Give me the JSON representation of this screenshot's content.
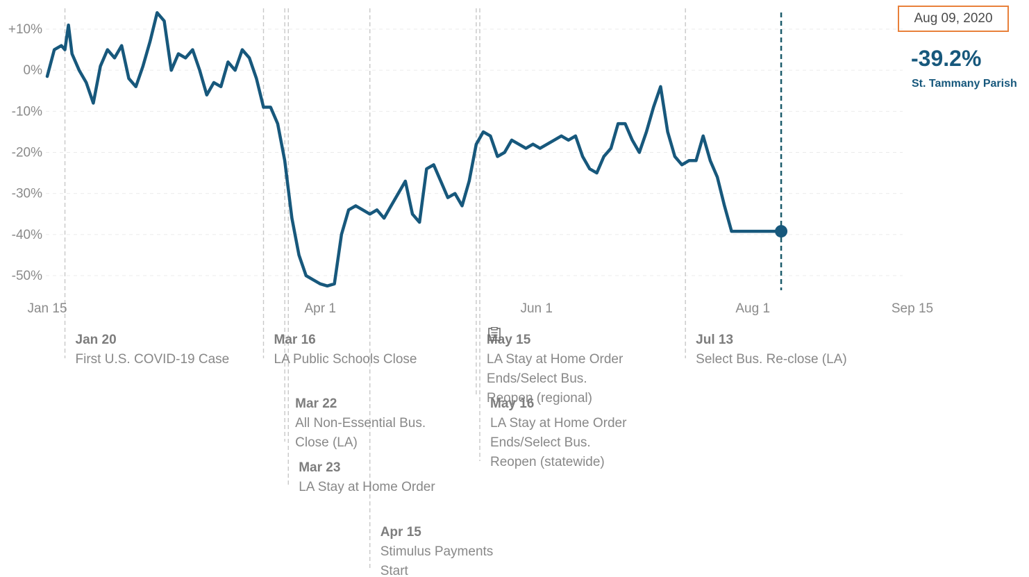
{
  "header": {
    "selected_date": "Aug 09, 2020",
    "selected_value": "-39.2%",
    "region": "St. Tammany Parish"
  },
  "colors": {
    "line": "#17587c",
    "highlight_box": "#e8803a",
    "text_muted": "#888888"
  },
  "chart_data": {
    "type": "line",
    "title": "",
    "xlabel": "",
    "ylabel": "",
    "ylim": [
      -55,
      15
    ],
    "xlim": [
      "2020-01-15",
      "2020-09-15"
    ],
    "yticks": [
      {
        "value": 10,
        "label": "+10%"
      },
      {
        "value": 0,
        "label": "0%"
      },
      {
        "value": -10,
        "label": "-10%"
      },
      {
        "value": -20,
        "label": "-20%"
      },
      {
        "value": -30,
        "label": "-30%"
      },
      {
        "value": -40,
        "label": "-40%"
      },
      {
        "value": -50,
        "label": "-50%"
      }
    ],
    "xticks": [
      {
        "date": "2020-01-15",
        "label": "Jan 15"
      },
      {
        "date": "2020-04-01",
        "label": "Apr 1"
      },
      {
        "date": "2020-06-01",
        "label": "Jun 1"
      },
      {
        "date": "2020-08-01",
        "label": "Aug 1"
      },
      {
        "date": "2020-09-15",
        "label": "Sep 15"
      }
    ],
    "grid": true,
    "highlight": {
      "date": "2020-08-09",
      "value": -39.2
    },
    "series": [
      {
        "x": [
          "2020-01-15",
          "2020-01-17",
          "2020-01-19",
          "2020-01-20",
          "2020-01-21",
          "2020-01-22",
          "2020-01-24",
          "2020-01-26",
          "2020-01-28",
          "2020-01-30",
          "2020-02-01",
          "2020-02-03",
          "2020-02-05",
          "2020-02-07",
          "2020-02-09",
          "2020-02-11",
          "2020-02-13",
          "2020-02-15",
          "2020-02-17",
          "2020-02-19",
          "2020-02-21",
          "2020-02-23",
          "2020-02-25",
          "2020-02-27",
          "2020-02-29",
          "2020-03-02",
          "2020-03-04",
          "2020-03-06",
          "2020-03-08",
          "2020-03-10",
          "2020-03-12",
          "2020-03-14",
          "2020-03-16",
          "2020-03-18",
          "2020-03-20",
          "2020-03-22",
          "2020-03-24",
          "2020-03-26",
          "2020-03-28",
          "2020-03-30",
          "2020-04-01",
          "2020-04-03",
          "2020-04-05",
          "2020-04-07",
          "2020-04-09",
          "2020-04-11",
          "2020-04-13",
          "2020-04-15",
          "2020-04-17",
          "2020-04-19",
          "2020-04-21",
          "2020-04-23",
          "2020-04-25",
          "2020-04-27",
          "2020-04-29",
          "2020-05-01",
          "2020-05-03",
          "2020-05-05",
          "2020-05-07",
          "2020-05-09",
          "2020-05-11",
          "2020-05-13",
          "2020-05-15",
          "2020-05-17",
          "2020-05-19",
          "2020-05-21",
          "2020-05-23",
          "2020-05-25",
          "2020-05-27",
          "2020-05-29",
          "2020-05-31",
          "2020-06-02",
          "2020-06-04",
          "2020-06-06",
          "2020-06-08",
          "2020-06-10",
          "2020-06-12",
          "2020-06-14",
          "2020-06-16",
          "2020-06-18",
          "2020-06-20",
          "2020-06-22",
          "2020-06-24",
          "2020-06-26",
          "2020-06-28",
          "2020-06-30",
          "2020-07-02",
          "2020-07-04",
          "2020-07-06",
          "2020-07-08",
          "2020-07-10",
          "2020-07-12",
          "2020-07-14",
          "2020-07-16",
          "2020-07-18",
          "2020-07-20",
          "2020-07-22",
          "2020-07-24",
          "2020-07-26",
          "2020-07-28",
          "2020-07-30",
          "2020-08-01",
          "2020-08-03",
          "2020-08-05",
          "2020-08-07",
          "2020-08-09"
        ],
        "values": [
          -1.5,
          5,
          6,
          5,
          11,
          4,
          0,
          -3,
          -8,
          1,
          5,
          3,
          6,
          -2,
          -4,
          1,
          7,
          14,
          12,
          0,
          4,
          3,
          5,
          0,
          -6,
          -3,
          -4,
          2,
          0,
          5,
          3,
          -2,
          -9,
          -9,
          -13,
          -22,
          -36,
          -45,
          -50,
          -51,
          -52,
          -52.5,
          -52,
          -40,
          -34,
          -33,
          -34,
          -35,
          -34,
          -36,
          -33,
          -30,
          -27,
          -35,
          -37,
          -24,
          -23,
          -27,
          -31,
          -30,
          -33,
          -27,
          -18,
          -15,
          -16,
          -21,
          -20,
          -17,
          -18,
          -19,
          -18,
          -19,
          -18,
          -17,
          -16,
          -17,
          -16,
          -21,
          -24,
          -25,
          -21,
          -19,
          -13,
          -13,
          -17,
          -20,
          -15,
          -9,
          -4,
          -15,
          -21,
          -23,
          -22,
          -22,
          -16,
          -22,
          -26,
          -33,
          -39.2,
          -39.2,
          -39.2,
          -39.2,
          -39.2,
          -39.2,
          -39.2,
          -39.2
        ]
      }
    ]
  },
  "events": [
    {
      "date": "2020-01-20",
      "label_date": "Jan 20",
      "lines": [
        "First U.S. COVID-19 Case"
      ],
      "row": 0
    },
    {
      "date": "2020-03-16",
      "label_date": "Mar 16",
      "lines": [
        "LA Public Schools Close"
      ],
      "row": 0
    },
    {
      "date": "2020-03-22",
      "label_date": "Mar 22",
      "lines": [
        "All Non-Essential Bus.",
        "Close (LA)"
      ],
      "row": 1
    },
    {
      "date": "2020-03-23",
      "label_date": "Mar 23",
      "lines": [
        "LA Stay at Home Order"
      ],
      "row": 2
    },
    {
      "date": "2020-04-15",
      "label_date": "Apr 15",
      "lines": [
        "Stimulus Payments",
        "Start"
      ],
      "row": 3
    },
    {
      "date": "2020-05-15",
      "label_date": "May 15",
      "lines": [
        "LA Stay at Home Order",
        "Ends/Select Bus.",
        "Reopen (regional)"
      ],
      "row": 0
    },
    {
      "date": "2020-05-16",
      "label_date": "May 16",
      "lines": [
        "LA Stay at Home Order",
        "Ends/Select Bus.",
        "Reopen (statewide)"
      ],
      "row": 1
    },
    {
      "date": "2020-07-13",
      "label_date": "Jul 13",
      "lines": [
        "Select Bus. Re-close (LA)"
      ],
      "row": 0
    }
  ]
}
